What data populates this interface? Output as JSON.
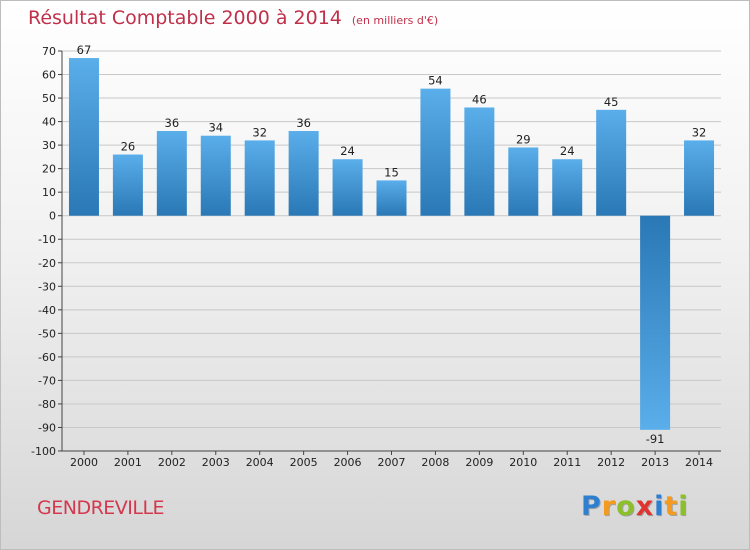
{
  "header": {
    "title": "Résultat Comptable 2000 à 2014",
    "subtitle": "(en milliers d'€)"
  },
  "commune": "GENDREVILLE",
  "logo": {
    "letters": [
      {
        "ch": "P",
        "color": "#2f7fd1"
      },
      {
        "ch": "r",
        "color": "#f39a1f"
      },
      {
        "ch": "o",
        "color": "#8bbf2b"
      },
      {
        "ch": "x",
        "color": "#e0342f"
      },
      {
        "ch": "i",
        "color": "#2f7fd1"
      },
      {
        "ch": "t",
        "color": "#f39a1f"
      },
      {
        "ch": "i",
        "color": "#8bbf2b"
      }
    ]
  },
  "colors": {
    "bar_light": "#5aaeea",
    "bar_dark": "#2a78b6",
    "grid": "#c8c8c8",
    "axis": "#444444"
  },
  "chart_data": {
    "type": "bar",
    "categories": [
      "2000",
      "2001",
      "2002",
      "2003",
      "2004",
      "2005",
      "2006",
      "2007",
      "2008",
      "2009",
      "2010",
      "2011",
      "2012",
      "2013",
      "2014"
    ],
    "values": [
      67,
      26,
      36,
      34,
      32,
      36,
      24,
      15,
      54,
      46,
      29,
      24,
      45,
      -91,
      32
    ],
    "ylim": [
      -100,
      70
    ],
    "yticks": [
      70,
      60,
      50,
      40,
      30,
      20,
      10,
      0,
      -10,
      -20,
      -30,
      -40,
      -50,
      -60,
      -70,
      -80,
      -90,
      -100
    ],
    "grid": true,
    "legend": "none"
  }
}
